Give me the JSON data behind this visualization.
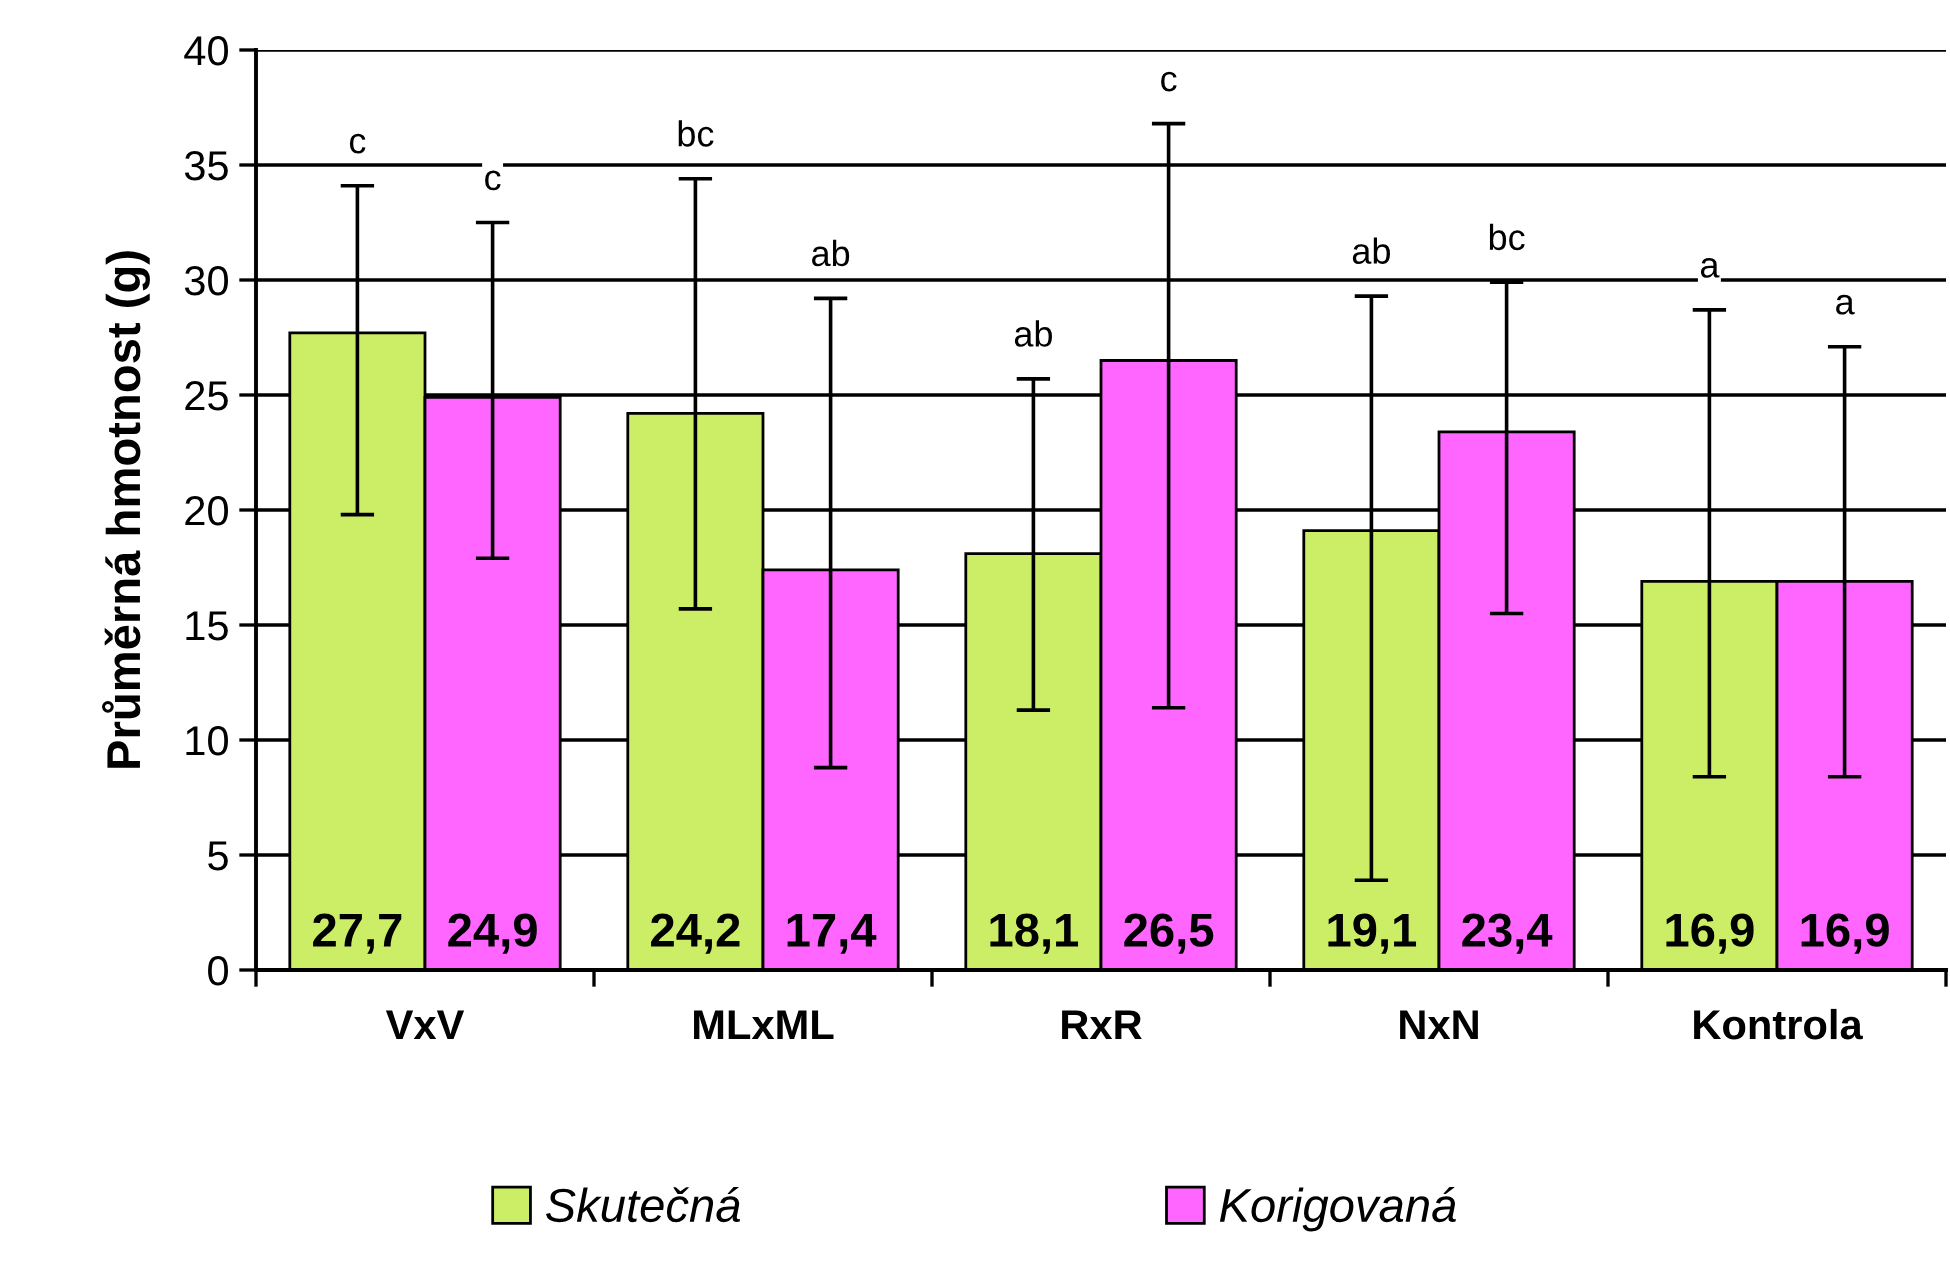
{
  "chart_data": {
    "type": "bar",
    "ylabel": "Průměrná hmotnost (g)",
    "categories": [
      "VxV",
      "MLxML",
      "RxR",
      "NxN",
      "Kontrola"
    ],
    "series": [
      {
        "name": "Skutečná",
        "color": "#ccee66",
        "values": [
          27.7,
          24.2,
          18.1,
          19.1,
          16.9
        ],
        "errors": [
          [
            19.8,
            34.1
          ],
          [
            15.7,
            34.4
          ],
          [
            11.3,
            25.7
          ],
          [
            3.9,
            29.3
          ],
          [
            8.4,
            28.7
          ]
        ],
        "value_labels": [
          "27,7",
          "24,2",
          "18,1",
          "19,1",
          "16,9"
        ]
      },
      {
        "name": "Korigovaná",
        "color": "#ff66ff",
        "values": [
          24.9,
          17.4,
          26.5,
          23.4,
          16.9
        ],
        "errors": [
          [
            17.9,
            32.5
          ],
          [
            8.8,
            29.2
          ],
          [
            11.4,
            36.8
          ],
          [
            15.5,
            29.9
          ],
          [
            8.4,
            27.1
          ]
        ],
        "value_labels": [
          "24,9",
          "17,4",
          "26,5",
          "23,4",
          "16,9"
        ]
      }
    ],
    "annotations": [
      "c",
      "c",
      "bc",
      "ab",
      "ab",
      "c",
      "ab",
      "bc",
      "a",
      "a"
    ],
    "ylim": [
      0,
      40
    ],
    "yticks": [
      0,
      5,
      10,
      15,
      20,
      25,
      30,
      35,
      40
    ],
    "grid": "y",
    "legend": "bottom"
  }
}
